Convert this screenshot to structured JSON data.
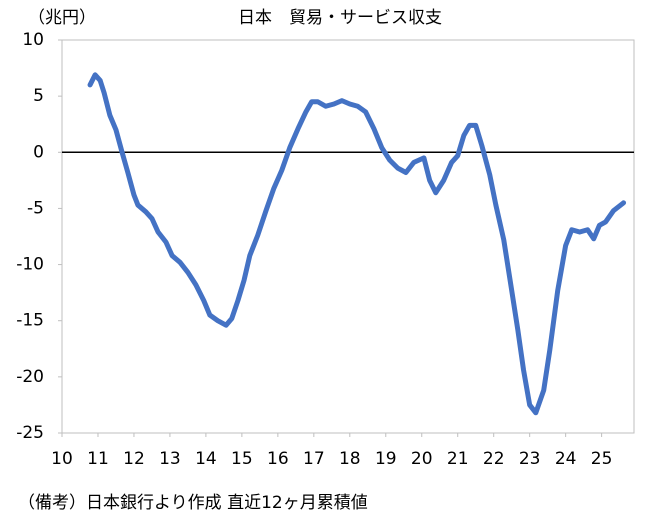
{
  "chart_data": {
    "type": "line",
    "title": "日本　貿易・サービス収支",
    "y_unit": "（兆円）",
    "note": "（備考）日本銀行より作成 直近12ヶ月累積値",
    "color": "#4472c4",
    "xlim": [
      10,
      25.9
    ],
    "xticks": [
      10,
      11,
      12,
      13,
      14,
      15,
      16,
      17,
      18,
      19,
      20,
      21,
      22,
      23,
      24,
      25
    ],
    "ylim": [
      -25,
      10
    ],
    "yticks": [
      10,
      5,
      0,
      -5,
      -10,
      -15,
      -20,
      -25
    ],
    "x": [
      10.78,
      10.92,
      11.06,
      11.17,
      11.33,
      11.5,
      11.67,
      11.83,
      12.0,
      12.11,
      12.33,
      12.5,
      12.67,
      12.89,
      13.06,
      13.28,
      13.5,
      13.72,
      13.94,
      14.11,
      14.33,
      14.56,
      14.72,
      14.89,
      15.06,
      15.22,
      15.44,
      15.67,
      15.89,
      16.11,
      16.33,
      16.56,
      16.78,
      16.94,
      17.11,
      17.33,
      17.56,
      17.78,
      18.0,
      18.22,
      18.44,
      18.67,
      18.89,
      19.11,
      19.33,
      19.56,
      19.78,
      20.06,
      20.22,
      20.39,
      20.61,
      20.83,
      21.0,
      21.17,
      21.33,
      21.5,
      21.67,
      21.89,
      22.06,
      22.28,
      22.5,
      22.67,
      22.83,
      23.0,
      23.17,
      23.39,
      23.56,
      23.78,
      24.0,
      24.17,
      24.39,
      24.61,
      24.78,
      24.94,
      25.11,
      25.33,
      25.61
    ],
    "values": [
      6.0,
      6.9,
      6.4,
      5.3,
      3.3,
      2.0,
      0,
      -1.8,
      -3.8,
      -4.7,
      -5.3,
      -5.9,
      -7.1,
      -8.0,
      -9.2,
      -9.8,
      -10.7,
      -11.8,
      -13.2,
      -14.5,
      -15.0,
      -15.4,
      -14.8,
      -13.2,
      -11.4,
      -9.2,
      -7.4,
      -5.2,
      -3.2,
      -1.6,
      0.4,
      2.1,
      3.6,
      4.5,
      4.5,
      4.1,
      4.3,
      4.6,
      4.3,
      4.1,
      3.6,
      2.1,
      0.4,
      -0.7,
      -1.4,
      -1.8,
      -0.9,
      -0.5,
      -2.5,
      -3.6,
      -2.5,
      -0.9,
      -0.3,
      1.5,
      2.4,
      2.4,
      0.6,
      -2.0,
      -4.7,
      -7.8,
      -12.3,
      -15.8,
      -19.4,
      -22.5,
      -23.2,
      -21.2,
      -17.6,
      -12.3,
      -8.3,
      -6.9,
      -7.1,
      -6.9,
      -7.7,
      -6.5,
      -6.2,
      -5.2,
      -4.5
    ]
  }
}
